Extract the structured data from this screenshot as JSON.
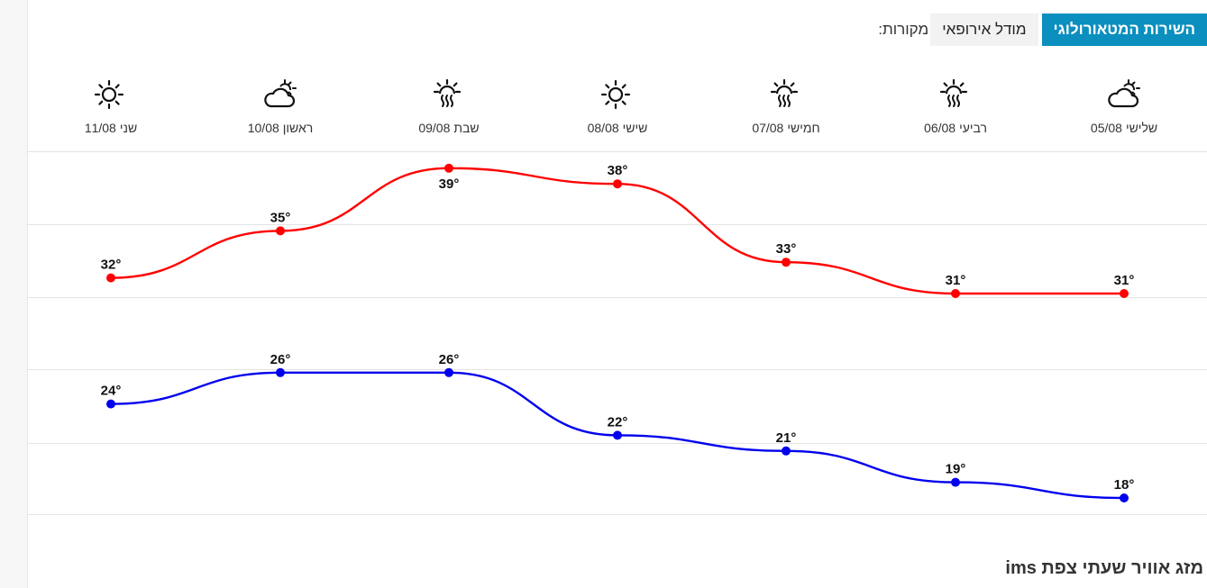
{
  "sources": {
    "label": "מקורות:",
    "options": [
      {
        "label": "מודל אירופאי",
        "active": false
      },
      {
        "label": "השירות המטאורולוגי",
        "active": true
      }
    ]
  },
  "days": [
    {
      "name": "שלישי",
      "date": "05/08",
      "icon": "partly-cloudy-icon"
    },
    {
      "name": "רביעי",
      "date": "06/08",
      "icon": "hazy-hot-icon"
    },
    {
      "name": "חמישי",
      "date": "07/08",
      "icon": "hazy-hot-icon"
    },
    {
      "name": "שישי",
      "date": "08/08",
      "icon": "sun-icon"
    },
    {
      "name": "שבת",
      "date": "09/08",
      "icon": "hazy-hot-icon"
    },
    {
      "name": "ראשון",
      "date": "10/08",
      "icon": "partly-cloudy-icon"
    },
    {
      "name": "שני",
      "date": "11/08",
      "icon": "sun-icon"
    }
  ],
  "chart_data": {
    "type": "line",
    "x": [
      "05/08",
      "06/08",
      "07/08",
      "08/08",
      "09/08",
      "10/08",
      "11/08"
    ],
    "series": [
      {
        "values": [
          31,
          31,
          33,
          38,
          39,
          35,
          32
        ],
        "color": "#ff0000"
      },
      {
        "values": [
          18,
          19,
          21,
          22,
          26,
          26,
          24
        ],
        "color": "#0000ee"
      }
    ],
    "unit": "°",
    "grid": true
  },
  "section_title": "מזג אוויר שעתי צפת ims"
}
